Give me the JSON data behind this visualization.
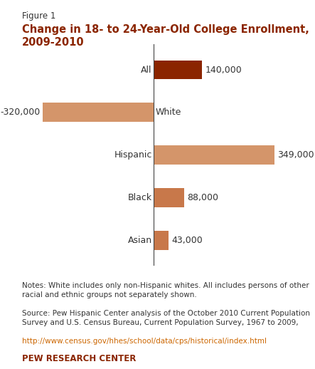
{
  "figure_label": "Figure 1",
  "title": "Change in 18- to 24-Year-Old College Enrollment,\n2009-2010",
  "categories": [
    "All",
    "White",
    "Hispanic",
    "Black",
    "Asian"
  ],
  "values": [
    140000,
    -320000,
    349000,
    88000,
    43000
  ],
  "bar_colors": [
    "#8B2500",
    "#D4956A",
    "#D4956A",
    "#C8784A",
    "#C8784A"
  ],
  "value_labels": [
    "140,000",
    "-320,000",
    "349,000",
    "88,000",
    "43,000"
  ],
  "notes_text": "Notes: White includes only non-Hispanic whites. All includes persons of other\nracial and ethnic groups not separately shown.",
  "source_text": "Source: Pew Hispanic Center analysis of the October 2010 Current Population\nSurvey and U.S. Census Bureau, Current Population Survey, 1967 to 2009,",
  "url_text": "http://www.census.gov/hhes/school/data/cps/historical/index.html",
  "pew_text": "PEW RESEARCH CENTER",
  "bg_color": "#FFFFFF",
  "axis_color": "#555555",
  "text_color": "#000000",
  "label_color": "#333333",
  "url_color": "#CC6600",
  "pew_color": "#8B2500",
  "xlim": [
    -380000,
    420000
  ],
  "bar_height": 0.45
}
